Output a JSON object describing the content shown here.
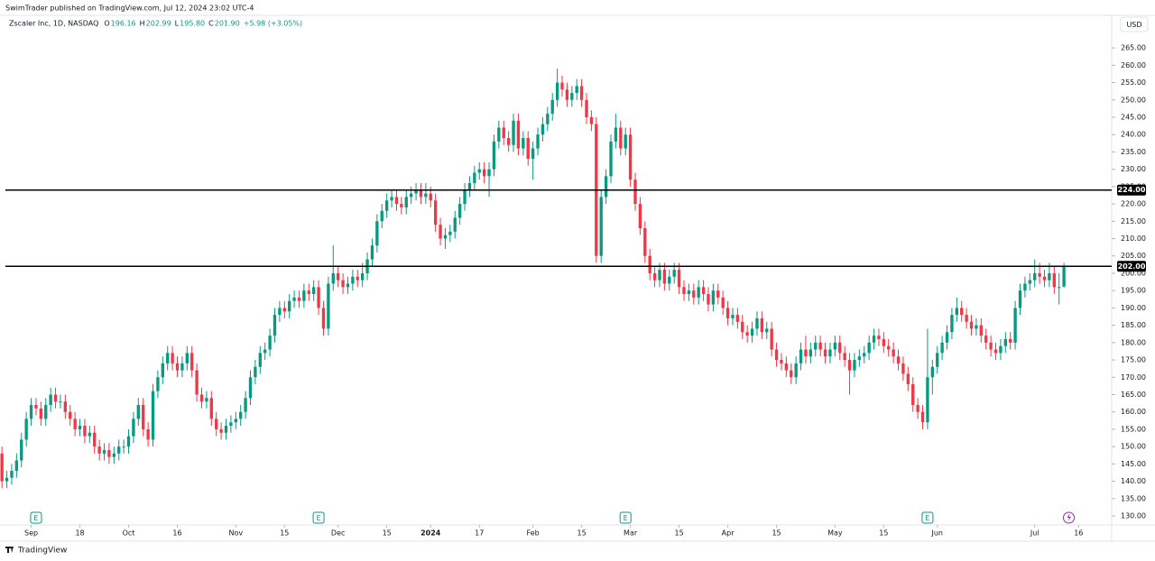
{
  "header": {
    "published": "SwimTrader published on TradingView.com, Jul 12, 2024 23:02 UTC-4",
    "currency": "USD",
    "brand": "TradingView"
  },
  "chart_data": {
    "type": "candlestick",
    "title": "Zscaler Inc, 1D, NASDAQ",
    "legend": [
      {
        "key": "O",
        "value": "196.16"
      },
      {
        "key": "H",
        "value": "202.99"
      },
      {
        "key": "L",
        "value": "195.80"
      },
      {
        "key": "C",
        "value": "201.90"
      }
    ],
    "change": "+5.98 (+3.05%)",
    "up_color": "#089981",
    "down_color": "#f23645",
    "open": [
      148,
      140,
      141,
      143,
      146,
      152,
      158,
      162,
      161,
      158,
      162,
      165,
      163,
      163,
      160,
      158,
      155,
      156,
      153,
      154,
      150,
      148,
      149,
      147,
      148,
      150,
      150,
      153,
      158,
      162,
      155,
      152,
      166,
      170,
      174,
      177,
      174,
      172,
      174,
      177,
      172,
      165,
      163,
      164,
      158,
      155,
      154,
      156,
      157,
      158,
      160,
      164,
      170,
      173,
      177,
      178,
      182,
      188,
      190,
      189,
      192,
      193,
      192,
      195,
      194,
      196,
      190,
      184,
      197,
      200,
      198,
      196,
      197,
      199,
      198,
      200,
      204,
      208,
      215,
      218,
      221,
      222,
      220,
      219,
      222,
      223,
      224,
      222,
      223,
      221,
      214,
      210,
      211,
      212,
      216,
      220,
      224,
      226,
      229,
      230,
      228,
      230,
      238,
      242,
      239,
      237,
      244,
      236,
      239,
      233,
      236,
      240,
      243,
      246,
      250,
      255,
      253,
      250,
      252,
      254,
      250,
      245,
      243,
      205,
      222,
      228,
      238,
      242,
      236,
      240,
      227,
      220,
      213,
      205,
      200,
      198,
      201,
      197,
      199,
      201,
      196,
      194,
      195,
      193,
      196,
      194,
      191,
      195,
      193,
      190,
      187,
      188,
      186,
      183,
      182,
      184,
      187,
      183,
      184,
      178,
      175,
      174,
      172,
      170,
      174,
      178,
      176,
      178,
      180,
      178,
      176,
      178,
      180,
      177,
      175,
      172,
      175,
      176,
      177,
      180,
      182,
      181,
      179,
      178,
      176,
      174,
      171,
      168,
      162,
      160,
      157,
      170,
      173,
      177,
      180,
      183,
      188,
      190,
      188,
      186,
      184,
      185,
      182,
      180,
      178,
      177,
      179,
      181,
      180,
      190,
      195,
      197,
      198,
      200,
      199,
      198,
      200,
      196,
      196.16
    ],
    "high": [
      150,
      143,
      145,
      148,
      154,
      160,
      164,
      164,
      163,
      164,
      167,
      167,
      165,
      165,
      162,
      160,
      158,
      158,
      156,
      156,
      152,
      151,
      151,
      150,
      152,
      152,
      155,
      160,
      164,
      164,
      157,
      168,
      172,
      176,
      179,
      179,
      176,
      176,
      179,
      179,
      174,
      167,
      166,
      166,
      160,
      157,
      158,
      159,
      160,
      162,
      166,
      172,
      175,
      179,
      180,
      184,
      190,
      192,
      192,
      194,
      195,
      195,
      197,
      197,
      198,
      198,
      192,
      199,
      208,
      202,
      200,
      199,
      201,
      201,
      203,
      206,
      210,
      217,
      220,
      223,
      224,
      224,
      222,
      224,
      225,
      226,
      226,
      226,
      225,
      223,
      216,
      213,
      214,
      218,
      222,
      226,
      228,
      231,
      232,
      232,
      232,
      240,
      244,
      244,
      241,
      246,
      246,
      241,
      241,
      238,
      242,
      245,
      248,
      252,
      259,
      257,
      255,
      254,
      256,
      256,
      252,
      247,
      245,
      224,
      230,
      240,
      246,
      244,
      242,
      242,
      229,
      222,
      215,
      207,
      202,
      203,
      203,
      201,
      203,
      203,
      198,
      197,
      197,
      198,
      198,
      196,
      197,
      197,
      195,
      192,
      190,
      190,
      188,
      185,
      186,
      189,
      189,
      186,
      186,
      180,
      177,
      176,
      174,
      176,
      180,
      182,
      180,
      182,
      182,
      180,
      180,
      182,
      182,
      179,
      177,
      177,
      178,
      179,
      182,
      184,
      184,
      183,
      181,
      180,
      178,
      176,
      173,
      170,
      164,
      162,
      184,
      175,
      179,
      182,
      185,
      190,
      193,
      192,
      190,
      188,
      187,
      187,
      184,
      182,
      180,
      181,
      183,
      183,
      192,
      197,
      199,
      200,
      204,
      203,
      201,
      203,
      202,
      200,
      202.99
    ],
    "low": [
      138,
      138,
      139,
      141,
      144,
      150,
      156,
      159,
      156,
      156,
      160,
      161,
      161,
      158,
      156,
      153,
      153,
      151,
      151,
      148,
      146,
      146,
      145,
      145,
      146,
      148,
      148,
      151,
      156,
      153,
      150,
      150,
      164,
      168,
      172,
      172,
      170,
      170,
      172,
      170,
      163,
      161,
      161,
      156,
      153,
      152,
      152,
      154,
      155,
      156,
      158,
      162,
      168,
      171,
      175,
      176,
      180,
      186,
      187,
      187,
      190,
      190,
      190,
      192,
      192,
      188,
      182,
      182,
      195,
      196,
      194,
      194,
      195,
      196,
      196,
      198,
      202,
      206,
      213,
      216,
      219,
      218,
      217,
      217,
      220,
      221,
      220,
      220,
      219,
      212,
      208,
      207,
      209,
      210,
      214,
      218,
      222,
      224,
      227,
      226,
      222,
      228,
      236,
      237,
      235,
      235,
      234,
      234,
      231,
      227,
      234,
      238,
      241,
      244,
      248,
      251,
      248,
      248,
      250,
      248,
      243,
      241,
      203,
      203,
      220,
      226,
      236,
      234,
      234,
      225,
      218,
      211,
      203,
      198,
      196,
      196,
      195,
      195,
      197,
      194,
      192,
      192,
      191,
      191,
      192,
      189,
      189,
      191,
      188,
      185,
      185,
      184,
      181,
      180,
      180,
      182,
      181,
      181,
      176,
      173,
      172,
      170,
      168,
      168,
      172,
      174,
      174,
      176,
      176,
      174,
      174,
      176,
      175,
      173,
      165,
      170,
      173,
      174,
      175,
      178,
      179,
      177,
      176,
      174,
      172,
      169,
      166,
      160,
      158,
      155,
      155,
      165,
      171,
      175,
      178,
      181,
      186,
      186,
      184,
      182,
      182,
      180,
      178,
      176,
      175,
      175,
      177,
      178,
      178,
      188,
      193,
      195,
      196,
      197,
      196,
      196,
      194,
      191,
      195.8
    ],
    "close": [
      140,
      141,
      143,
      146,
      152,
      158,
      162,
      161,
      158,
      162,
      165,
      163,
      163,
      160,
      158,
      155,
      156,
      153,
      154,
      150,
      148,
      149,
      147,
      148,
      150,
      150,
      153,
      158,
      162,
      155,
      152,
      166,
      170,
      174,
      177,
      174,
      172,
      174,
      177,
      172,
      165,
      163,
      164,
      158,
      155,
      154,
      156,
      157,
      158,
      160,
      164,
      170,
      173,
      177,
      178,
      182,
      188,
      190,
      189,
      192,
      193,
      192,
      195,
      194,
      196,
      190,
      184,
      197,
      200,
      198,
      196,
      197,
      199,
      198,
      200,
      204,
      208,
      215,
      218,
      221,
      222,
      220,
      219,
      222,
      223,
      224,
      222,
      223,
      221,
      214,
      210,
      211,
      212,
      216,
      220,
      224,
      226,
      229,
      230,
      228,
      230,
      238,
      242,
      239,
      237,
      244,
      236,
      239,
      233,
      236,
      240,
      243,
      246,
      250,
      255,
      253,
      250,
      252,
      254,
      250,
      245,
      243,
      205,
      222,
      228,
      238,
      242,
      236,
      240,
      227,
      220,
      213,
      205,
      200,
      198,
      201,
      197,
      199,
      201,
      196,
      194,
      195,
      193,
      196,
      194,
      191,
      195,
      193,
      190,
      187,
      188,
      186,
      183,
      182,
      184,
      187,
      183,
      184,
      178,
      175,
      174,
      172,
      170,
      174,
      178,
      176,
      178,
      180,
      178,
      176,
      178,
      180,
      177,
      175,
      172,
      175,
      176,
      177,
      180,
      182,
      181,
      179,
      178,
      176,
      174,
      171,
      168,
      162,
      160,
      157,
      170,
      173,
      177,
      180,
      183,
      188,
      190,
      188,
      186,
      184,
      185,
      182,
      180,
      178,
      177,
      179,
      181,
      180,
      190,
      195,
      197,
      198,
      200,
      199,
      198,
      200,
      196,
      196,
      201.9
    ],
    "hlines": [
      {
        "value": 224,
        "label": "224.00"
      },
      {
        "value": 202,
        "label": "202.00"
      }
    ],
    "events": [
      {
        "value": 7,
        "label": "E"
      },
      {
        "value": 65,
        "label": "E"
      },
      {
        "value": 128,
        "label": "E"
      },
      {
        "value": 190,
        "label": "E"
      }
    ],
    "xlim": [
      -0.4,
      227.8
    ],
    "xticks": [
      {
        "value": 6,
        "label": "Sep"
      },
      {
        "value": 16,
        "label": "18"
      },
      {
        "value": 26,
        "label": "Oct"
      },
      {
        "value": 36,
        "label": "16"
      },
      {
        "value": 48,
        "label": "Nov"
      },
      {
        "value": 58,
        "label": "15"
      },
      {
        "value": 69,
        "label": "Dec"
      },
      {
        "value": 79,
        "label": "15"
      },
      {
        "value": 88,
        "label": "2024"
      },
      {
        "value": 98,
        "label": "17"
      },
      {
        "value": 109,
        "label": "Feb"
      },
      {
        "value": 119,
        "label": "15"
      },
      {
        "value": 129,
        "label": "Mar"
      },
      {
        "value": 139,
        "label": "15"
      },
      {
        "value": 149,
        "label": "Apr"
      },
      {
        "value": 159,
        "label": "15"
      },
      {
        "value": 171,
        "label": "May"
      },
      {
        "value": 181,
        "label": "15"
      },
      {
        "value": 192,
        "label": "Jun"
      },
      {
        "value": 212,
        "label": "Jul"
      },
      {
        "value": 221,
        "label": "16"
      }
    ],
    "ylim": [
      127.4,
      274.4
    ],
    "yticks": [
      {
        "value": 130,
        "label": "130.00"
      },
      {
        "value": 135,
        "label": "135.00"
      },
      {
        "value": 140,
        "label": "140.00"
      },
      {
        "value": 145,
        "label": "145.00"
      },
      {
        "value": 150,
        "label": "150.00"
      },
      {
        "value": 155,
        "label": "155.00"
      },
      {
        "value": 160,
        "label": "160.00"
      },
      {
        "value": 165,
        "label": "165.00"
      },
      {
        "value": 170,
        "label": "170.00"
      },
      {
        "value": 175,
        "label": "175.00"
      },
      {
        "value": 180,
        "label": "180.00"
      },
      {
        "value": 185,
        "label": "185.00"
      },
      {
        "value": 190,
        "label": "190.00"
      },
      {
        "value": 195,
        "label": "195.00"
      },
      {
        "value": 200,
        "label": "200.00"
      },
      {
        "value": 205,
        "label": "205.00"
      },
      {
        "value": 210,
        "label": "210.00"
      },
      {
        "value": 215,
        "label": "215.00"
      },
      {
        "value": 220,
        "label": "220.00"
      },
      {
        "value": 225,
        "label": "225.00"
      },
      {
        "value": 230,
        "label": "230.00"
      },
      {
        "value": 235,
        "label": "235.00"
      },
      {
        "value": 240,
        "label": "240.00"
      },
      {
        "value": 245,
        "label": "245.00"
      },
      {
        "value": 250,
        "label": "250.00"
      },
      {
        "value": 255,
        "label": "255.00"
      },
      {
        "value": 260,
        "label": "260.00"
      },
      {
        "value": 265,
        "label": "265.00"
      }
    ]
  }
}
